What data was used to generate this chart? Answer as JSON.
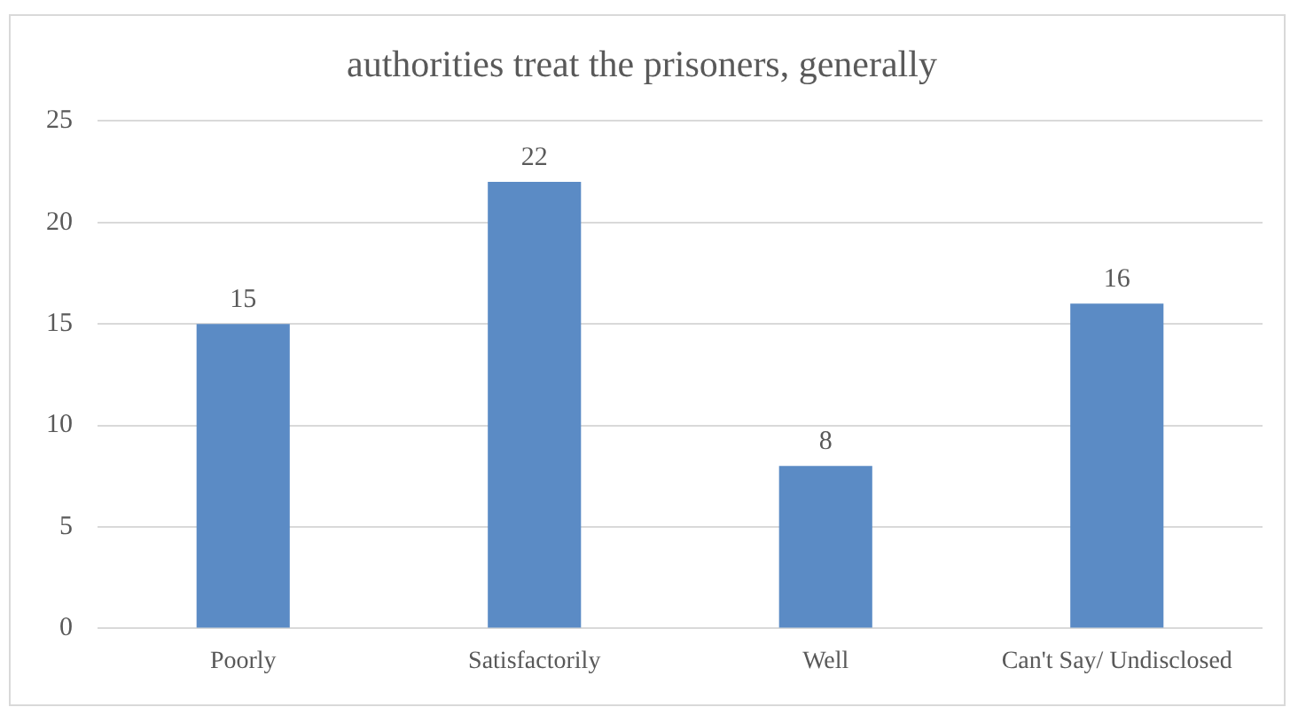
{
  "chart_data": {
    "type": "bar",
    "title": "authorities treat the prisoners, generally",
    "categories": [
      "Poorly",
      "Satisfactorily",
      "Well",
      "Can't Say/ Undisclosed"
    ],
    "values": [
      15,
      22,
      8,
      16
    ],
    "color": "#5b8bc5",
    "ylim": [
      0,
      25
    ],
    "yticks": [
      0,
      5,
      10,
      15,
      20,
      25
    ],
    "grid": "y",
    "legend": false,
    "data_labels": true
  }
}
